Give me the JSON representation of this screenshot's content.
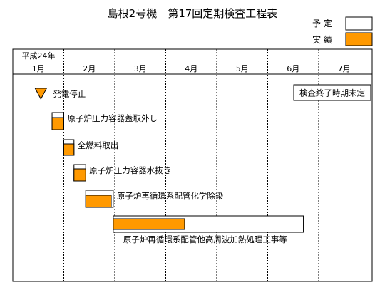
{
  "title": "島根2号機　第17回定期検査工程表",
  "legend": {
    "planned_label": "予 定",
    "actual_label": "実 績",
    "planned_color": "#ffffff",
    "actual_color": "#ff9900"
  },
  "status_note": "検査終了時期未定",
  "chart_data": {
    "type": "gantt",
    "title": "島根2号機　第17回定期検査工程表",
    "year_label": "平成24年",
    "months": [
      "1月",
      "2月",
      "3月",
      "4月",
      "5月",
      "6月",
      "7月"
    ],
    "x_axis": "month index (1.0 = start of 1月)",
    "milestones": [
      {
        "name": "発電停止",
        "at": 1.55,
        "marker": "triangle-down"
      }
    ],
    "tasks": [
      {
        "name": "原子炉圧力容器蓋取外し",
        "planned": [
          1.77,
          2.0
        ],
        "actual": [
          1.77,
          2.0
        ],
        "label_position": "right"
      },
      {
        "name": "全燃料取出",
        "planned": [
          2.0,
          2.2
        ],
        "actual": [
          2.0,
          2.2
        ],
        "label_position": "right"
      },
      {
        "name": "原子炉圧力容器水抜き",
        "planned": [
          2.2,
          2.43
        ],
        "actual": [
          2.2,
          2.43
        ],
        "label_position": "right"
      },
      {
        "name": "原子炉再循環系配管化学除染",
        "planned": [
          2.43,
          2.97
        ],
        "actual": [
          2.43,
          2.93
        ],
        "label_position": "right"
      },
      {
        "name": "原子炉再循環系配管他高周波加熱処理工事等",
        "planned": [
          2.97,
          6.7
        ],
        "actual": [
          2.97,
          4.37
        ],
        "label_position": "below"
      }
    ]
  }
}
